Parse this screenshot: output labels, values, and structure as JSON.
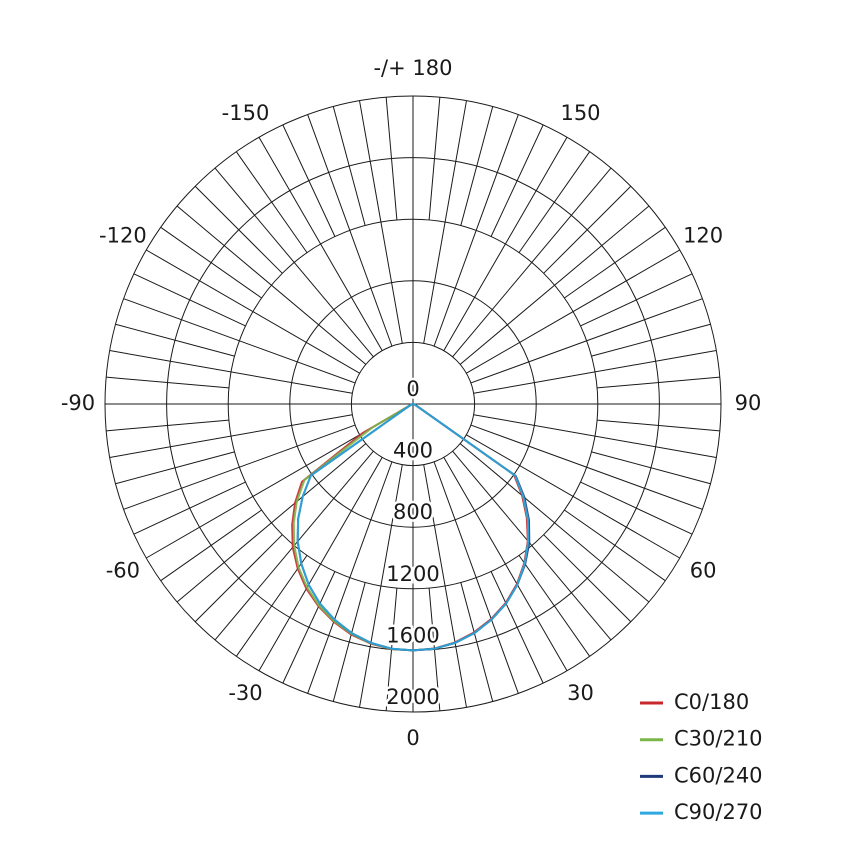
{
  "chart_data": {
    "type": "polar",
    "theta": [
      -90,
      -85,
      -80,
      -75,
      -70,
      -65,
      -60,
      -55,
      -50,
      -45,
      -40,
      -35,
      -30,
      -25,
      -20,
      -15,
      -10,
      -5,
      0,
      5,
      10,
      15,
      20,
      25,
      30,
      35,
      40,
      45,
      50,
      55,
      60,
      65,
      70,
      75,
      80,
      85,
      90
    ],
    "series": [
      {
        "name": "C0/180",
        "color": "#c8282d",
        "values": [
          0,
          0,
          0,
          5,
          10,
          20,
          380,
          880,
          1000,
          1110,
          1215,
          1305,
          1385,
          1450,
          1505,
          1550,
          1580,
          1598,
          1600,
          1594,
          1572,
          1535,
          1485,
          1425,
          1350,
          1260,
          1160,
          1045,
          925,
          800,
          40,
          20,
          10,
          5,
          0,
          0,
          0
        ]
      },
      {
        "name": "C30/210",
        "color": "#7ab648",
        "values": [
          0,
          0,
          0,
          5,
          10,
          20,
          300,
          860,
          985,
          1095,
          1200,
          1295,
          1375,
          1445,
          1500,
          1545,
          1578,
          1597,
          1600,
          1595,
          1575,
          1540,
          1490,
          1430,
          1355,
          1265,
          1165,
          1055,
          935,
          810,
          40,
          20,
          10,
          5,
          0,
          0,
          0
        ]
      },
      {
        "name": "C60/240",
        "color": "#1f3a7a",
        "values": [
          0,
          0,
          0,
          5,
          10,
          20,
          40,
          810,
          935,
          1055,
          1165,
          1265,
          1355,
          1430,
          1490,
          1540,
          1575,
          1595,
          1600,
          1595,
          1575,
          1540,
          1490,
          1430,
          1355,
          1270,
          1175,
          1065,
          945,
          815,
          40,
          20,
          10,
          5,
          0,
          0,
          0
        ]
      },
      {
        "name": "C90/270",
        "color": "#2ea8e0",
        "values": [
          0,
          0,
          0,
          5,
          10,
          20,
          40,
          810,
          935,
          1055,
          1165,
          1265,
          1355,
          1430,
          1490,
          1540,
          1575,
          1595,
          1600,
          1595,
          1575,
          1540,
          1490,
          1430,
          1355,
          1265,
          1165,
          1055,
          935,
          810,
          40,
          20,
          10,
          5,
          0,
          0,
          0
        ]
      }
    ],
    "rlim": [
      0,
      2000
    ],
    "rticks": [
      0,
      400,
      800,
      1200,
      1600,
      2000
    ],
    "thetaticks": [
      0,
      30,
      60,
      90,
      120,
      150,
      {
        "value": 180,
        "label": "-/+ 180"
      },
      -150,
      -120,
      -90,
      -60,
      -30
    ],
    "legend": "bottom-right"
  }
}
